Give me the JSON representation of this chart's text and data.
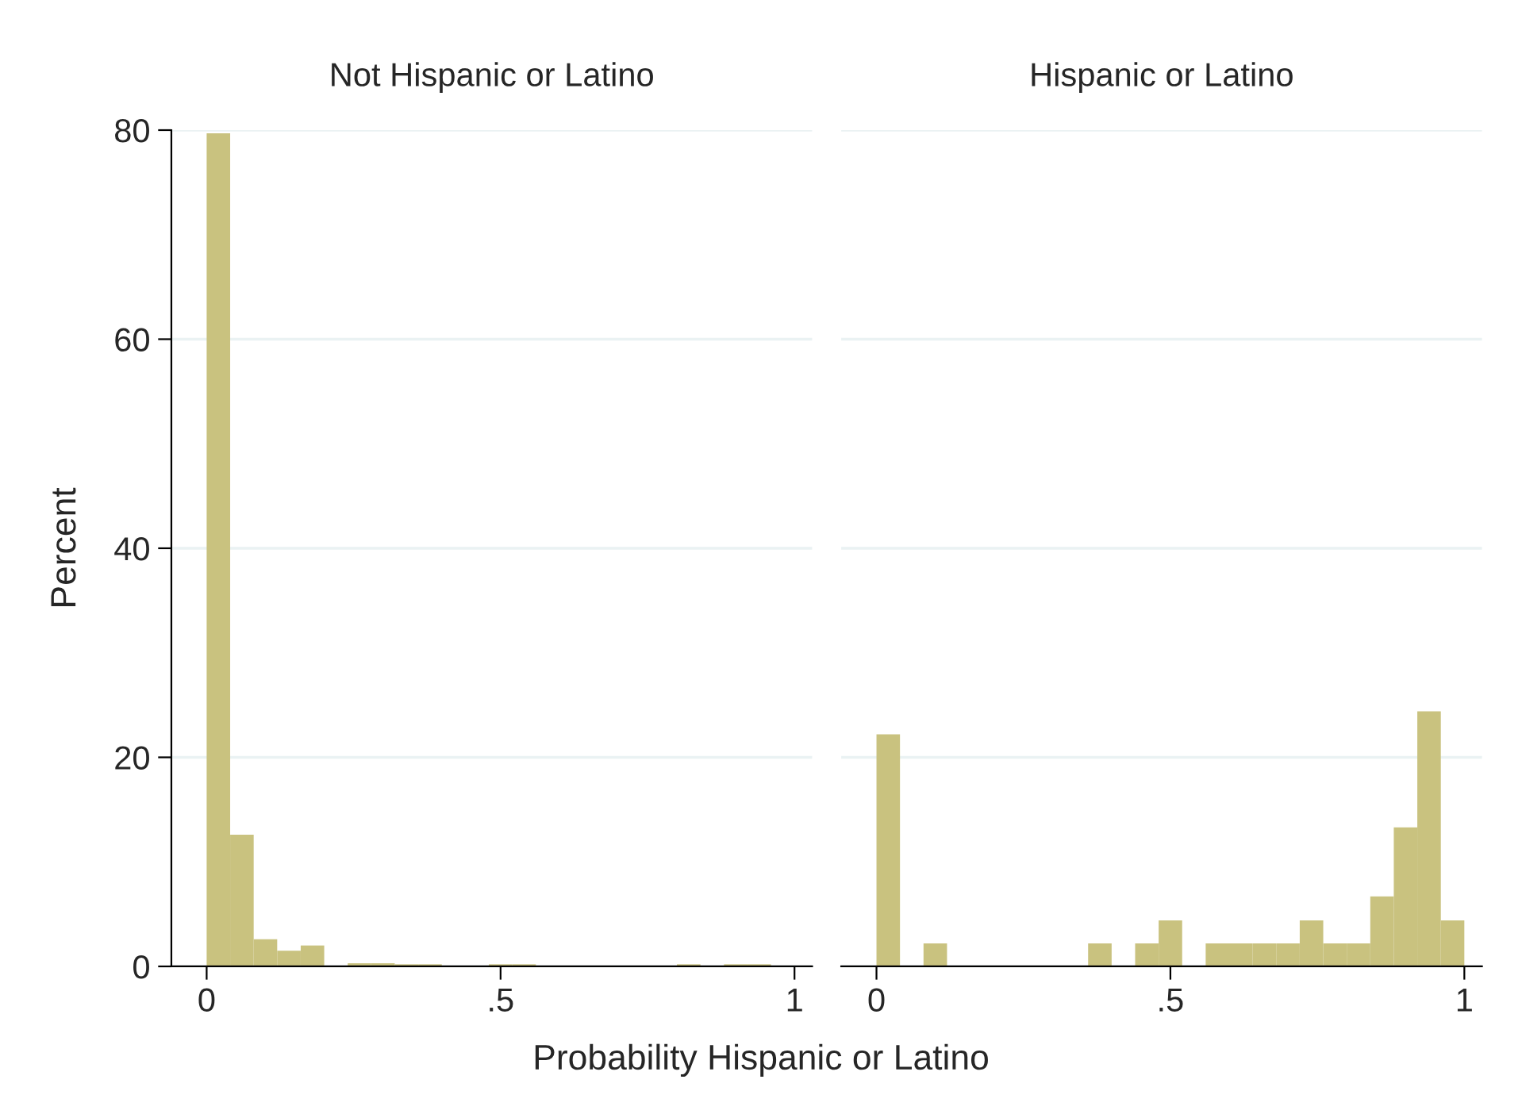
{
  "chart_data": [
    {
      "type": "histogram",
      "title": "Not Hispanic or Latino",
      "ylabel": "Percent",
      "xlabel": "Probability Hispanic or Latino",
      "bins": [
        0,
        0.04,
        0.08,
        0.12,
        0.16,
        0.2,
        0.24,
        0.28,
        0.32,
        0.36,
        0.4,
        0.44,
        0.48,
        0.52,
        0.56,
        0.6,
        0.64,
        0.68,
        0.72,
        0.76,
        0.8,
        0.84,
        0.88,
        0.92,
        0.96,
        1.0
      ],
      "values": [
        79.7,
        12.6,
        2.6,
        1.5,
        2.0,
        0,
        0.3,
        0.3,
        0.2,
        0.2,
        0,
        0,
        0.2,
        0.2,
        0,
        0,
        0,
        0,
        0,
        0,
        0.2,
        0,
        0.2,
        0.2,
        0
      ],
      "color": "#c9c27f",
      "xlim": [
        -0.06,
        1.03
      ],
      "ylim": [
        0,
        80
      ],
      "xticks": [
        0,
        {
          "value": 0.5,
          "label": ".5"
        },
        1
      ],
      "yticks": [
        0,
        20,
        40,
        60,
        80
      ],
      "grid": "y"
    },
    {
      "type": "histogram",
      "title": "Hispanic or Latino",
      "bins": [
        0,
        0.04,
        0.08,
        0.12,
        0.16,
        0.2,
        0.24,
        0.28,
        0.32,
        0.36,
        0.4,
        0.44,
        0.48,
        0.52,
        0.56,
        0.6,
        0.64,
        0.68,
        0.72,
        0.76,
        0.8,
        0.84,
        0.88,
        0.92,
        0.96,
        1.0
      ],
      "values": [
        22.2,
        0,
        2.2,
        0,
        0,
        0,
        0,
        0,
        0,
        2.2,
        0,
        2.2,
        4.4,
        0,
        2.2,
        2.2,
        2.2,
        2.2,
        4.4,
        2.2,
        2.2,
        6.7,
        13.3,
        24.4,
        4.4
      ],
      "color": "#c9c27f",
      "xlim": [
        -0.06,
        1.03
      ],
      "ylim": [
        0,
        80
      ],
      "xticks": [
        0,
        {
          "value": 0.5,
          "label": ".5"
        },
        1
      ],
      "yticks": [
        0,
        20,
        40,
        60,
        80
      ],
      "grid": "y",
      "tick_labels": "x"
    }
  ]
}
